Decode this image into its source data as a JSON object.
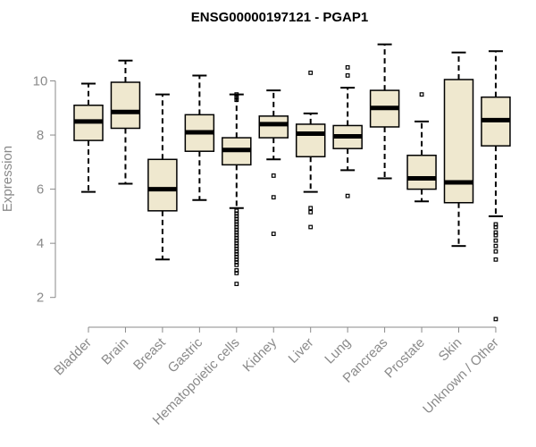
{
  "chart_data": {
    "type": "boxplot",
    "title": "ENSG00000197121 - PGAP1",
    "xlabel": "",
    "ylabel": "Expression",
    "ylim": [
      0.9,
      11.8
    ],
    "yticks": [
      2,
      4,
      6,
      8,
      10
    ],
    "colors": {
      "box_fill": "#efe8cf",
      "stroke": "#000000",
      "axis": "#8a8a8a"
    },
    "categories": [
      "Bladder",
      "Brain",
      "Breast",
      "Gastric",
      "Hematopoietic cells",
      "Kidney",
      "Liver",
      "Lung",
      "Pancreas",
      "Prostate",
      "Skin",
      "Unknown / Other"
    ],
    "boxes": [
      {
        "name": "Bladder",
        "whisker_low": 5.9,
        "q1": 7.8,
        "median": 8.5,
        "q3": 9.1,
        "whisker_high": 9.9,
        "outliers": []
      },
      {
        "name": "Brain",
        "whisker_low": 6.2,
        "q1": 8.25,
        "median": 8.85,
        "q3": 9.95,
        "whisker_high": 10.75,
        "outliers": []
      },
      {
        "name": "Breast",
        "whisker_low": 3.4,
        "q1": 5.2,
        "median": 6.0,
        "q3": 7.1,
        "whisker_high": 9.5,
        "outliers": []
      },
      {
        "name": "Gastric",
        "whisker_low": 5.6,
        "q1": 7.4,
        "median": 8.1,
        "q3": 8.75,
        "whisker_high": 10.2,
        "outliers": []
      },
      {
        "name": "Hematopoietic cells",
        "whisker_low": 5.3,
        "q1": 6.9,
        "median": 7.45,
        "q3": 7.9,
        "whisker_high": 9.5,
        "outliers": [
          9.5,
          9.4,
          9.3,
          5.2,
          5.1,
          5.0,
          4.9,
          4.8,
          4.7,
          4.6,
          4.5,
          4.4,
          4.3,
          4.2,
          4.1,
          4.0,
          3.9,
          3.8,
          3.7,
          3.6,
          3.5,
          3.4,
          3.3,
          3.2,
          3.0,
          2.9,
          2.5
        ]
      },
      {
        "name": "Kidney",
        "whisker_low": 7.1,
        "q1": 7.9,
        "median": 8.4,
        "q3": 8.7,
        "whisker_high": 9.65,
        "outliers": [
          6.5,
          5.7,
          4.35
        ]
      },
      {
        "name": "Liver",
        "whisker_low": 5.9,
        "q1": 7.2,
        "median": 8.05,
        "q3": 8.4,
        "whisker_high": 8.8,
        "outliers": [
          10.3,
          5.3,
          5.15,
          4.6
        ]
      },
      {
        "name": "Lung",
        "whisker_low": 6.7,
        "q1": 7.5,
        "median": 7.95,
        "q3": 8.35,
        "whisker_high": 9.75,
        "outliers": [
          10.5,
          10.2,
          5.75
        ]
      },
      {
        "name": "Pancreas",
        "whisker_low": 6.4,
        "q1": 8.3,
        "median": 9.0,
        "q3": 9.65,
        "whisker_high": 11.35,
        "outliers": []
      },
      {
        "name": "Prostate",
        "whisker_low": 5.55,
        "q1": 6.0,
        "median": 6.4,
        "q3": 7.25,
        "whisker_high": 8.5,
        "outliers": [
          9.5
        ]
      },
      {
        "name": "Skin",
        "whisker_low": 3.9,
        "q1": 5.5,
        "median": 6.25,
        "q3": 10.05,
        "whisker_high": 11.05,
        "outliers": []
      },
      {
        "name": "Unknown / Other",
        "whisker_low": 5.0,
        "q1": 7.6,
        "median": 8.55,
        "q3": 9.4,
        "whisker_high": 11.1,
        "outliers": [
          4.7,
          4.6,
          4.4,
          4.3,
          4.1,
          3.9,
          3.7,
          3.4,
          1.2
        ]
      }
    ]
  }
}
